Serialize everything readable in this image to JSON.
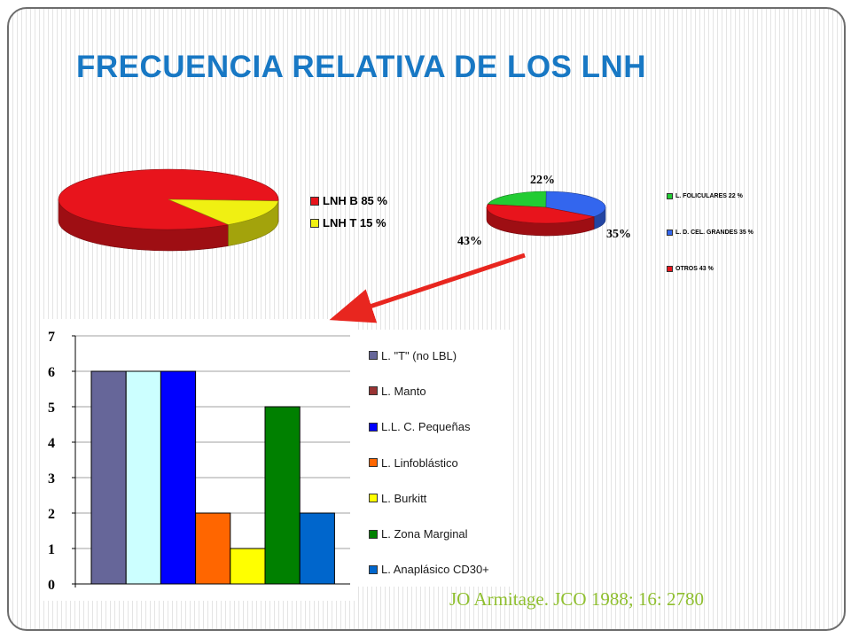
{
  "title": "FRECUENCIA RELATIVA DE LOS LNH",
  "citation": "JO Armitage. JCO 1988; 16: 2780",
  "colors": {
    "title": "#1878c4",
    "citation": "#8fbf2f",
    "arrow": "#e8261f"
  },
  "chart_data": [
    {
      "type": "pie",
      "labels": [
        "LNH B",
        "LNH T"
      ],
      "values": [
        85,
        15
      ],
      "colors": [
        "#e8141c",
        "#f0f012"
      ],
      "legend": [
        "LNH B 85 %",
        "LNH T 15 %"
      ],
      "legend_position": "right"
    },
    {
      "type": "pie",
      "labels": [
        "L. FOLICULARES",
        "L. D. CEL. GRANDES",
        "OTROS"
      ],
      "values": [
        22,
        35,
        43
      ],
      "colors": [
        "#22cc33",
        "#3366ee",
        "#e8141c"
      ],
      "data_labels": [
        "22%",
        "35%",
        "43%"
      ],
      "legend": [
        "L. FOLICULARES 22 %",
        "L. D. CEL. GRANDES 35 %",
        "OTROS 43 %"
      ],
      "legend_position": "right"
    },
    {
      "type": "bar",
      "categories": [
        "L. \"T\" (no LBL)",
        "",
        "L.L. C. Pequeñas",
        "L. Linfoblástico",
        "L. Burkitt",
        "L. Zona Marginal",
        "L. Anaplásico CD30+"
      ],
      "values": [
        6,
        6,
        6,
        2,
        1,
        5,
        2
      ],
      "colors": [
        "#666699",
        "#ccffff",
        "#0000ff",
        "#ff6600",
        "#ffff00",
        "#008000",
        "#0066cc"
      ],
      "ylim": [
        0,
        7
      ],
      "yticks": [
        "0",
        "1",
        "2",
        "3",
        "4",
        "5",
        "6",
        "7"
      ],
      "grid": true,
      "legend": [
        {
          "label": "L. \"T\" (no LBL)",
          "color": "#666699"
        },
        {
          "label": "L. Manto",
          "color": "#993333"
        },
        {
          "label": "L.L. C. Pequeñas",
          "color": "#0000ff"
        },
        {
          "label": "L. Linfoblástico",
          "color": "#ff6600"
        },
        {
          "label": "L. Burkitt",
          "color": "#ffff00"
        },
        {
          "label": "L. Zona Marginal",
          "color": "#008000"
        },
        {
          "label": "L. Anaplásico CD30+",
          "color": "#0066cc"
        }
      ],
      "legend_position": "right"
    }
  ]
}
